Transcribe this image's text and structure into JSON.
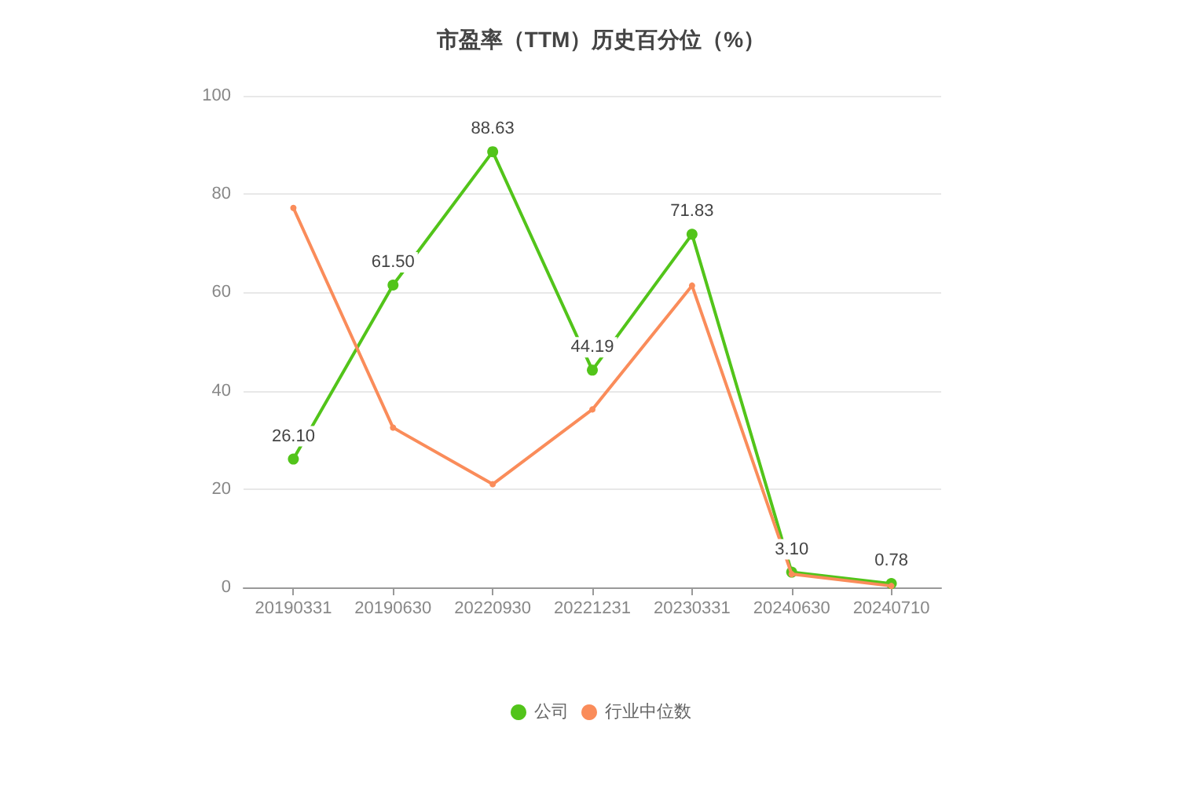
{
  "chart_data": {
    "type": "line",
    "title": "市盈率（TTM）历史百分位（%）",
    "categories": [
      "20190331",
      "20190630",
      "20220930",
      "20221231",
      "20230331",
      "20240630",
      "20240710"
    ],
    "series": [
      {
        "name": "公司",
        "color": "#52c41a",
        "values": [
          26.1,
          61.5,
          88.63,
          44.19,
          71.83,
          3.1,
          0.78
        ],
        "value_labels": [
          "26.10",
          "61.50",
          "88.63",
          "44.19",
          "71.83",
          "3.10",
          "0.78"
        ]
      },
      {
        "name": "行业中位数",
        "color": "#fa8c5a",
        "values": [
          77.2,
          32.5,
          21.0,
          36.2,
          61.4,
          2.7,
          0.3
        ]
      }
    ],
    "ylim": [
      0,
      100
    ],
    "yticks": [
      0,
      20,
      40,
      60,
      80,
      100
    ],
    "grid": "y",
    "legend": "bottom",
    "marker": "circle",
    "line_style": "solid"
  }
}
